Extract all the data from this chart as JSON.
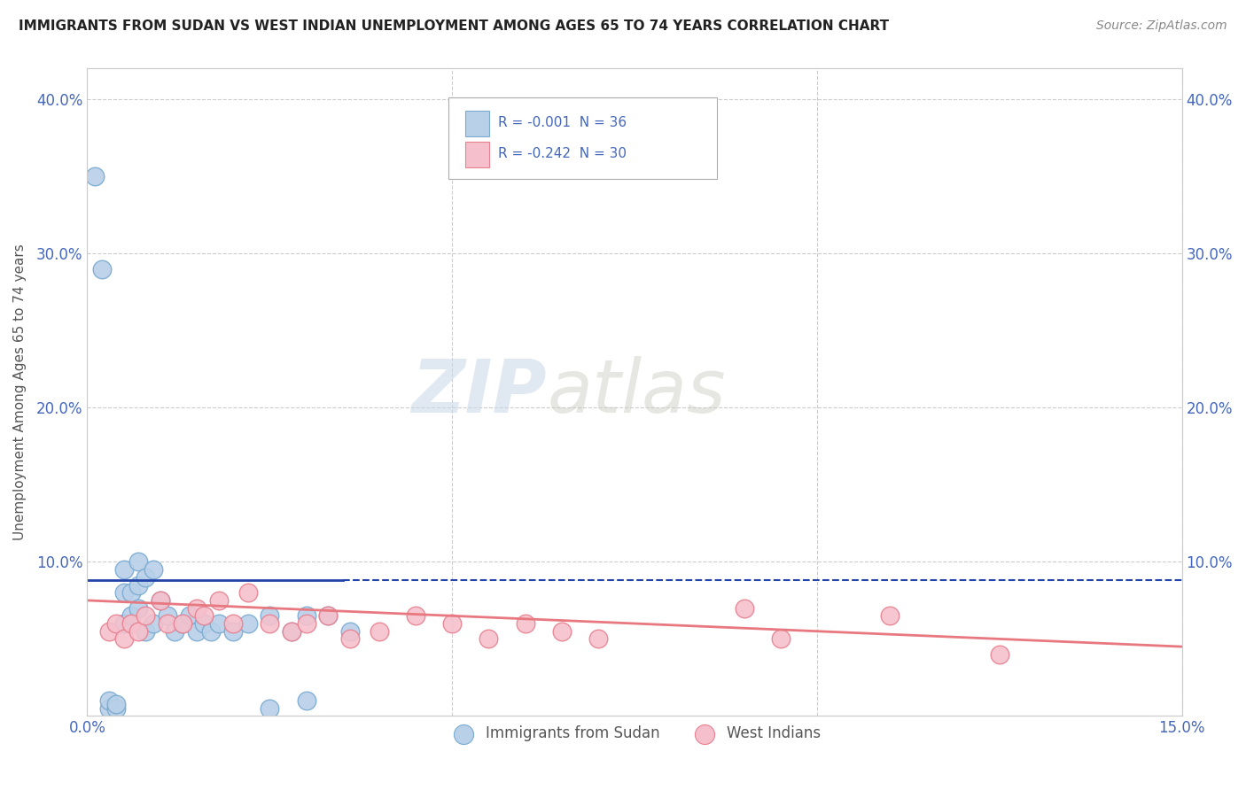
{
  "title": "IMMIGRANTS FROM SUDAN VS WEST INDIAN UNEMPLOYMENT AMONG AGES 65 TO 74 YEARS CORRELATION CHART",
  "source": "Source: ZipAtlas.com",
  "ylabel": "Unemployment Among Ages 65 to 74 years",
  "xlim": [
    0.0,
    0.15
  ],
  "ylim": [
    0.0,
    0.42
  ],
  "sudan_color": "#b8d0e8",
  "sudan_edge": "#7aaad0",
  "west_indian_color": "#f5c0cc",
  "west_indian_edge": "#e88090",
  "sudan_R": "-0.001",
  "sudan_N": "36",
  "west_indian_R": "-0.242",
  "west_indian_N": "30",
  "trend_sudan_color": "#2244aa",
  "trend_west_indian_color": "#e87880",
  "watermark_zip": "ZIP",
  "watermark_atlas": "atlas",
  "background_color": "#ffffff",
  "grid_color": "#cccccc",
  "sudan_x": [
    0.001,
    0.002,
    0.003,
    0.003,
    0.004,
    0.004,
    0.005,
    0.005,
    0.005,
    0.006,
    0.006,
    0.007,
    0.007,
    0.007,
    0.008,
    0.008,
    0.009,
    0.009,
    0.01,
    0.011,
    0.012,
    0.013,
    0.014,
    0.015,
    0.016,
    0.017,
    0.018,
    0.02,
    0.022,
    0.025,
    0.028,
    0.03,
    0.033,
    0.036,
    0.025,
    0.03
  ],
  "sudan_y": [
    0.35,
    0.29,
    0.005,
    0.01,
    0.005,
    0.008,
    0.06,
    0.08,
    0.095,
    0.065,
    0.08,
    0.07,
    0.085,
    0.1,
    0.055,
    0.09,
    0.06,
    0.095,
    0.075,
    0.065,
    0.055,
    0.06,
    0.065,
    0.055,
    0.06,
    0.055,
    0.06,
    0.055,
    0.06,
    0.065,
    0.055,
    0.065,
    0.065,
    0.055,
    0.005,
    0.01
  ],
  "west_indian_x": [
    0.003,
    0.004,
    0.005,
    0.006,
    0.007,
    0.008,
    0.01,
    0.011,
    0.013,
    0.015,
    0.016,
    0.018,
    0.02,
    0.022,
    0.025,
    0.028,
    0.03,
    0.033,
    0.036,
    0.04,
    0.045,
    0.05,
    0.055,
    0.06,
    0.065,
    0.07,
    0.09,
    0.095,
    0.11,
    0.125
  ],
  "west_indian_y": [
    0.055,
    0.06,
    0.05,
    0.06,
    0.055,
    0.065,
    0.075,
    0.06,
    0.06,
    0.07,
    0.065,
    0.075,
    0.06,
    0.08,
    0.06,
    0.055,
    0.06,
    0.065,
    0.05,
    0.055,
    0.065,
    0.06,
    0.05,
    0.06,
    0.055,
    0.05,
    0.07,
    0.05,
    0.065,
    0.04
  ],
  "sudan_trend_x": [
    0.0,
    0.035
  ],
  "sudan_trend_y": [
    0.088,
    0.088
  ],
  "west_indian_trend_x": [
    0.0,
    0.15
  ],
  "west_indian_trend_y_start": 0.075,
  "west_indian_trend_y_end": 0.045,
  "tick_color": "#4466bb",
  "axis_label_color": "#555555",
  "title_color": "#222222",
  "source_color": "#888888"
}
